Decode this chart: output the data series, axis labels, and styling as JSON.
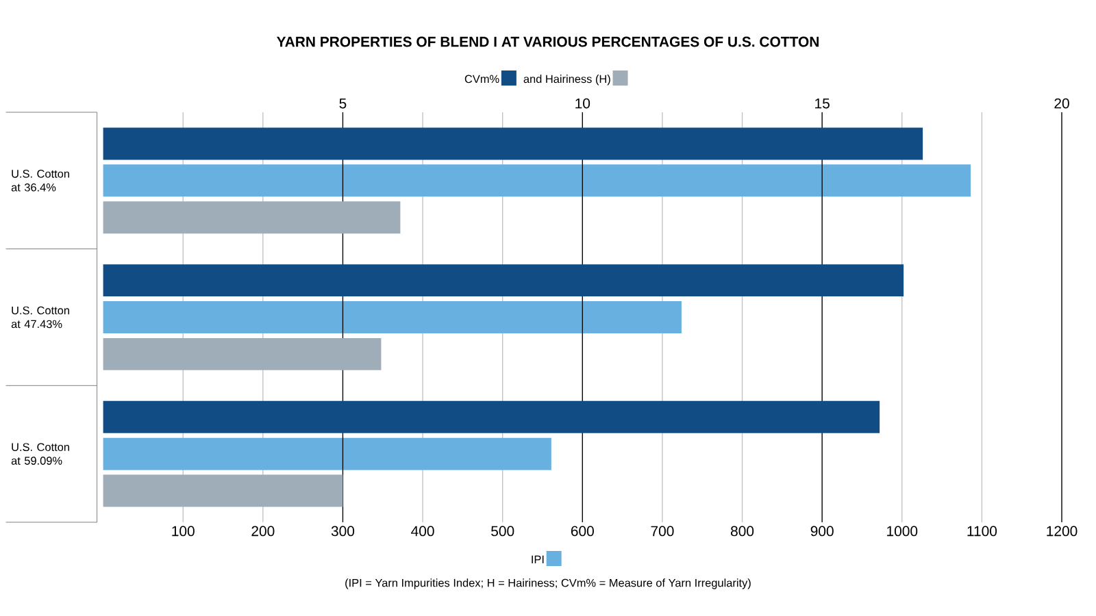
{
  "chart_data": {
    "type": "bar",
    "orientation": "horizontal",
    "title": "YARN PROPERTIES OF BLEND I AT VARIOUS PERCENTAGES OF U.S. COTTON",
    "categories": [
      "U.S. Cotton at 36.4%",
      "U.S. Cotton at 47.43%",
      "U.S. Cotton at 59.09%"
    ],
    "series": [
      {
        "name": "CVm%",
        "color": "#124c84",
        "axis": "x2",
        "values": [
          17.1,
          16.7,
          16.2
        ]
      },
      {
        "color": "#67b0e0",
        "values": [
          1086,
          724,
          561
        ]
      },
      {
        "name": "and Hairiness (H)",
        "color": "#9eadb7",
        "axis": "x2",
        "values": [
          6.2,
          5.8,
          5.0
        ]
      }
    ],
    "xlim": [
      0,
      1200
    ],
    "xticks": [
      100,
      200,
      300,
      400,
      500,
      600,
      700,
      800,
      900,
      1000,
      1100,
      1200
    ],
    "x2lim": [
      0,
      20
    ],
    "x2ticks": [
      5,
      10,
      15,
      20
    ],
    "xlabel": "IPI",
    "grid": "x",
    "legend": "top",
    "annotations": [
      "(IPI = Yarn Impurities Index; H = Hairiness; CVm% = Measure of Yarn Irregularity)"
    ]
  }
}
